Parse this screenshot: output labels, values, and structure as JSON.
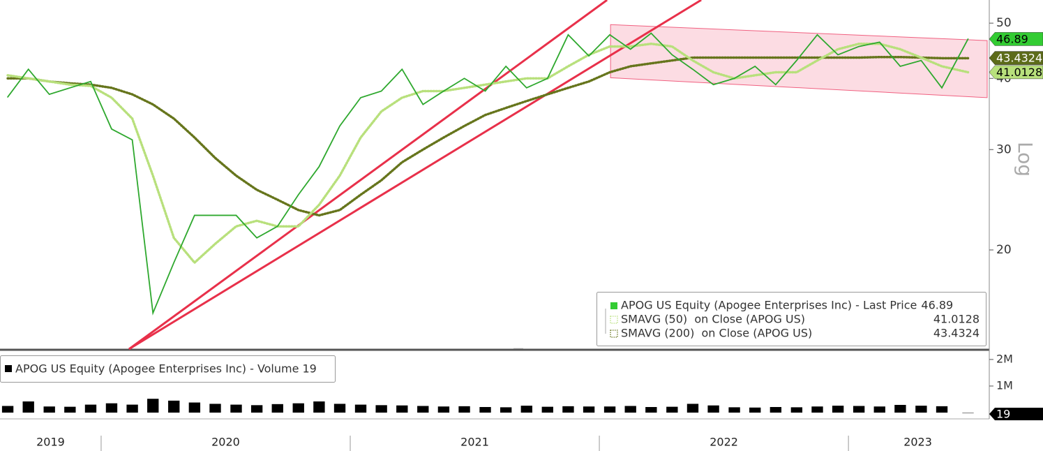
{
  "chart_data": [
    {
      "type": "line",
      "log_scale": true,
      "y_axis_label": "Log",
      "xlim": [
        2019.594,
        2023.557
      ],
      "ylim": [
        13.4,
        54.9
      ],
      "yticks": [
        20,
        30,
        40,
        50
      ],
      "xticks": [
        {
          "value": 2019,
          "label": "2019"
        },
        {
          "value": 2020,
          "label": "2020"
        },
        {
          "value": 2021,
          "label": "2021"
        },
        {
          "value": 2022,
          "label": "2022"
        },
        {
          "value": 2023,
          "label": "2023"
        }
      ],
      "x": [
        2019.625,
        2019.708,
        2019.792,
        2019.875,
        2019.958,
        2020.042,
        2020.125,
        2020.208,
        2020.292,
        2020.375,
        2020.458,
        2020.542,
        2020.625,
        2020.708,
        2020.792,
        2020.875,
        2020.958,
        2021.042,
        2021.125,
        2021.208,
        2021.292,
        2021.375,
        2021.458,
        2021.542,
        2021.625,
        2021.708,
        2021.792,
        2021.875,
        2021.958,
        2022.042,
        2022.125,
        2022.208,
        2022.292,
        2022.375,
        2022.458,
        2022.542,
        2022.625,
        2022.708,
        2022.792,
        2022.875,
        2022.958,
        2023.042,
        2023.125,
        2023.208,
        2023.292,
        2023.375,
        2023.48
      ],
      "series": [
        {
          "name": "APOG US Equity (Apogee Enterprises Inc) - Last Price",
          "color": "#2ea82e",
          "tag_color": "#33cc33",
          "text_color": "#000000",
          "style": "solid",
          "last_value": 46.89,
          "values": [
            37.1,
            41.5,
            37.5,
            38.5,
            39.5,
            32.6,
            31.2,
            15.5,
            19,
            23,
            23,
            23,
            21,
            22,
            25,
            28,
            33,
            37,
            38,
            41.5,
            36,
            38,
            40,
            38,
            42,
            38.5,
            40,
            47.7,
            43.8,
            47.7,
            45,
            48,
            44,
            41.5,
            39,
            40,
            42,
            39,
            43,
            47.7,
            44,
            45.5,
            46.3,
            42,
            43,
            38.5,
            46.89
          ]
        },
        {
          "name": "SMAVG (50)  on Close (APOG US)",
          "color": "#b8e07c",
          "tag_color": "#b8e07c",
          "text_color": "#000000",
          "style": "dotted",
          "last_value": 41.0128,
          "values": [
            40.5,
            40,
            39.5,
            39,
            38.8,
            37,
            34,
            27,
            21,
            19,
            20.5,
            22,
            22.5,
            22,
            22,
            24,
            27,
            31.5,
            35,
            37,
            38,
            38,
            38.5,
            39,
            39.5,
            40,
            40,
            42,
            44,
            45.5,
            45.5,
            46,
            45.5,
            43,
            41,
            40,
            40.5,
            41,
            41,
            43,
            45,
            46,
            46,
            45,
            43.5,
            42,
            41.0
          ]
        },
        {
          "name": "SMAVG (200)  on Close (APOG US)",
          "color": "#66751c",
          "tag_color": "#5c6b1a",
          "text_color": "#ffffff",
          "style": "dotted",
          "last_value": 43.4324,
          "values": [
            40,
            40,
            39.5,
            39.2,
            39,
            38.5,
            37.5,
            36,
            34,
            31.5,
            29,
            27,
            25.5,
            24.5,
            23.5,
            23,
            23.5,
            25,
            26.5,
            28.5,
            30,
            31.5,
            33,
            34.5,
            35.5,
            36.5,
            37.5,
            38.5,
            39.5,
            41,
            42,
            42.5,
            43,
            43.5,
            43.5,
            43.5,
            43.5,
            43.5,
            43.5,
            43.5,
            43.5,
            43.5,
            43.6,
            43.6,
            43.5,
            43.4,
            43.4
          ]
        }
      ],
      "trendlines": [
        {
          "color": "#e8304a",
          "x": [
            2020.112,
            2022.031
          ],
          "y": [
            13.4,
            54.9
          ]
        },
        {
          "color": "#e8304a",
          "x": [
            2020.112,
            2022.409
          ],
          "y": [
            13.4,
            54.9
          ]
        }
      ],
      "channel": {
        "color": "#f06080",
        "x": [
          2022.045,
          2023.557
        ],
        "upper": [
          49.7,
          46.6
        ],
        "lower": [
          40.1,
          37.0
        ]
      }
    },
    {
      "type": "bar",
      "name": "APOG US Equity (Apogee Enterprises Inc) - Volume",
      "color": "#000000",
      "xlim": [
        2019.594,
        2023.557
      ],
      "ylim": [
        0,
        2260000
      ],
      "yticks": [
        {
          "value": 1000000,
          "label": "1M"
        },
        {
          "value": 2000000,
          "label": "2M"
        }
      ],
      "x": [
        2019.625,
        2019.708,
        2019.792,
        2019.875,
        2019.958,
        2020.042,
        2020.125,
        2020.208,
        2020.292,
        2020.375,
        2020.458,
        2020.542,
        2020.625,
        2020.708,
        2020.792,
        2020.875,
        2020.958,
        2021.042,
        2021.125,
        2021.208,
        2021.292,
        2021.375,
        2021.458,
        2021.542,
        2021.625,
        2021.708,
        2021.792,
        2021.875,
        2021.958,
        2022.042,
        2022.125,
        2022.208,
        2022.292,
        2022.375,
        2022.458,
        2022.542,
        2022.625,
        2022.708,
        2022.792,
        2022.875,
        2022.958,
        2023.042,
        2023.125,
        2023.208,
        2023.292,
        2023.375,
        2023.48
      ],
      "values": [
        250000,
        420000,
        230000,
        220000,
        300000,
        350000,
        300000,
        520000,
        450000,
        380000,
        330000,
        300000,
        280000,
        320000,
        350000,
        420000,
        330000,
        300000,
        280000,
        270000,
        250000,
        230000,
        240000,
        210000,
        200000,
        260000,
        220000,
        240000,
        230000,
        230000,
        250000,
        210000,
        220000,
        330000,
        270000,
        200000,
        190000,
        210000,
        200000,
        230000,
        260000,
        250000,
        230000,
        290000,
        260000,
        240000,
        19
      ]
    }
  ]
}
